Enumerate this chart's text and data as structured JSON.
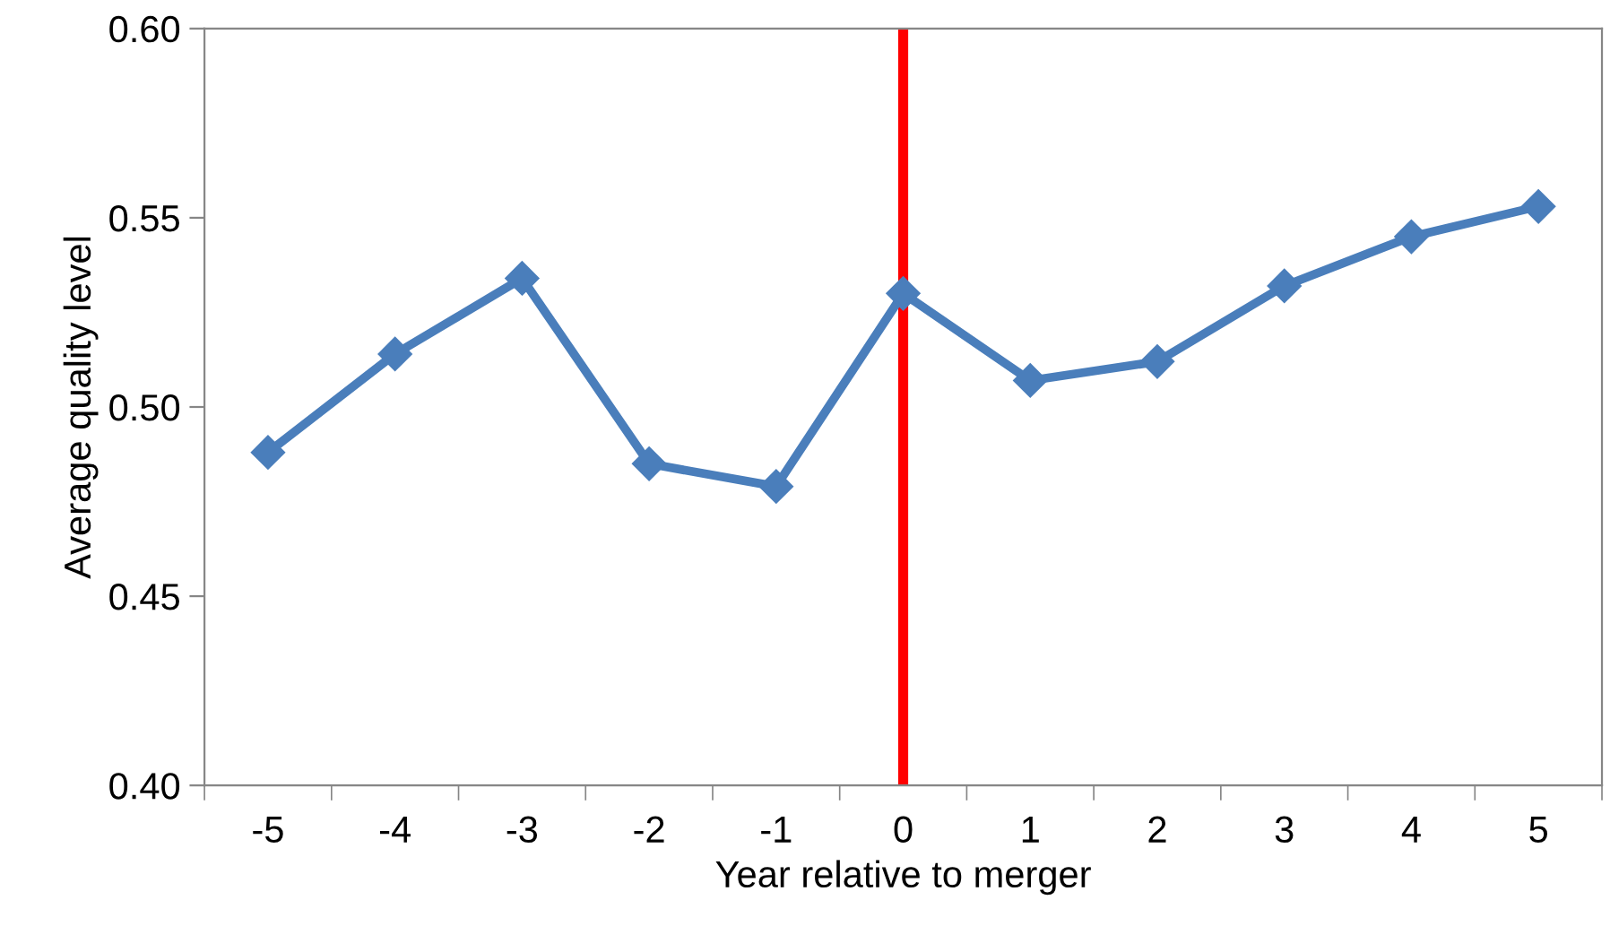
{
  "chart_data": {
    "type": "line",
    "xlabel": "Year relative to merger",
    "ylabel": "Average quality level",
    "categories": [
      "-5",
      "-4",
      "-3",
      "-2",
      "-1",
      "0",
      "1",
      "2",
      "3",
      "4",
      "5"
    ],
    "series": [
      {
        "color": "#4a7ebb",
        "values": [
          0.488,
          0.514,
          0.534,
          0.485,
          0.479,
          0.53,
          0.507,
          0.512,
          0.532,
          0.545,
          0.553
        ]
      }
    ],
    "ylim": [
      0.4,
      0.6
    ],
    "yticks": [
      {
        "value": 0.4,
        "label": "0.40"
      },
      {
        "value": 0.45,
        "label": "0.45"
      },
      {
        "value": 0.5,
        "label": "0.50"
      },
      {
        "value": 0.55,
        "label": "0.55"
      },
      {
        "value": 0.6,
        "label": "0.60"
      }
    ],
    "ref_lines": [
      {
        "axis": "x",
        "value": "0",
        "color": "#ff0000"
      }
    ],
    "grid": false,
    "legend": false,
    "marker": "diamond",
    "line_style": "solid"
  }
}
